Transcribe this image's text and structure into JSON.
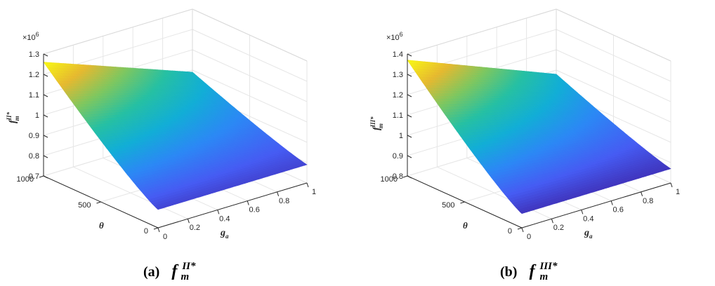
{
  "chart_data": [
    {
      "type": "surface",
      "panel_label": "(a)",
      "title_main": "f",
      "title_sup": "II*",
      "title_sub": "m",
      "zlabel_main": "f",
      "zlabel_sup": "II*",
      "zlabel_sub": "m",
      "xlabel_main": "g",
      "xlabel_sub": "a",
      "ylabel": "θ",
      "multiplier_base": "×10",
      "multiplier_exp": "6",
      "xlim": [
        0,
        1
      ],
      "ylim": [
        0,
        1000
      ],
      "zlim": [
        0.7,
        1.3
      ],
      "xticks": [
        "0",
        "0.2",
        "0.4",
        "0.6",
        "0.8",
        "1"
      ],
      "yticks": [
        "0",
        "500",
        "1000"
      ],
      "zticks": [
        "0.7",
        "0.8",
        "0.9",
        "1",
        "1.1",
        "1.2",
        "1.3"
      ],
      "corners": {
        "ga0_theta1000": 1.26,
        "ga1_theta1000": 0.99,
        "ga0_theta0": 0.79,
        "ga1_theta0": 0.79
      },
      "colormap": "parula",
      "grid": true
    },
    {
      "type": "surface",
      "panel_label": "(b)",
      "title_main": "f",
      "title_sup": "III*",
      "title_sub": "m",
      "zlabel_main": "f",
      "zlabel_sup": "III*",
      "zlabel_sub": "m",
      "xlabel_main": "g",
      "xlabel_sub": "a",
      "ylabel": "θ",
      "multiplier_base": "×10",
      "multiplier_exp": "6",
      "xlim": [
        0,
        1
      ],
      "ylim": [
        0,
        1000
      ],
      "zlim": [
        0.8,
        1.4
      ],
      "xticks": [
        "0",
        "0.2",
        "0.4",
        "0.6",
        "0.8",
        "1"
      ],
      "yticks": [
        "0",
        "500",
        "1000"
      ],
      "zticks": [
        "0.8",
        "0.9",
        "1",
        "1.1",
        "1.2",
        "1.3",
        "1.4"
      ],
      "corners": {
        "ga0_theta1000": 1.37,
        "ga1_theta1000": 1.08,
        "ga0_theta0": 0.87,
        "ga1_theta0": 0.87
      },
      "colormap": "parula",
      "grid": true
    }
  ]
}
